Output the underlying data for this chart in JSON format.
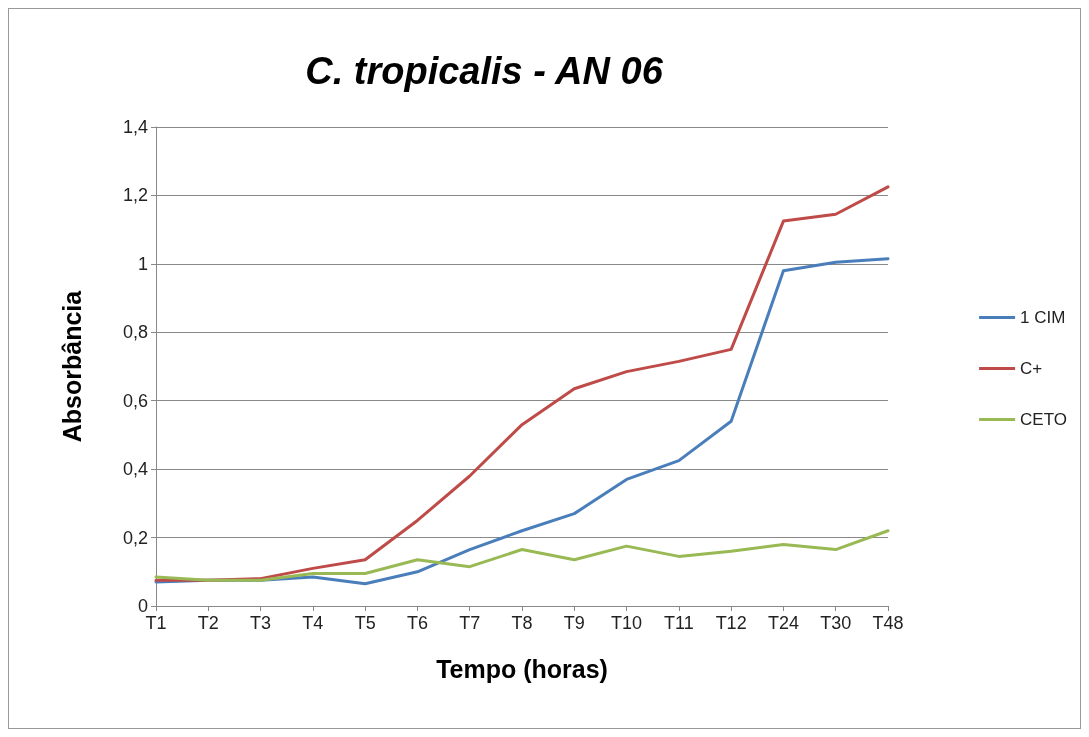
{
  "chart_data": {
    "type": "line",
    "title": "C. tropicalis - AN 06",
    "xlabel": "Tempo (horas)",
    "ylabel": "Absorbância",
    "categories": [
      "T1",
      "T2",
      "T3",
      "T4",
      "T5",
      "T6",
      "T7",
      "T8",
      "T9",
      "T10",
      "T11",
      "T12",
      "T24",
      "T30",
      "T48"
    ],
    "series": [
      {
        "name": "1 CIM",
        "color": "#4a7ebb",
        "values": [
          0.07,
          0.075,
          0.075,
          0.085,
          0.065,
          0.1,
          0.165,
          0.22,
          0.27,
          0.37,
          0.425,
          0.54,
          0.98,
          1.005,
          1.015
        ]
      },
      {
        "name": "C+",
        "color": "#be4b48",
        "values": [
          0.075,
          0.075,
          0.08,
          0.11,
          0.135,
          0.25,
          0.38,
          0.53,
          0.635,
          0.685,
          0.715,
          0.75,
          1.125,
          1.145,
          1.225
        ]
      },
      {
        "name": "CETO",
        "color": "#98b954",
        "values": [
          0.085,
          0.075,
          0.075,
          0.095,
          0.095,
          0.135,
          0.115,
          0.165,
          0.135,
          0.175,
          0.145,
          0.16,
          0.18,
          0.165,
          0.22
        ]
      }
    ],
    "ylim": [
      0,
      1.4
    ],
    "yticks": [
      0,
      {
        "value": 0.2,
        "label": "0,2"
      },
      {
        "value": 0.4,
        "label": "0,4"
      },
      {
        "value": 0.6,
        "label": "0,6"
      },
      {
        "value": 0.8,
        "label": "0,8"
      },
      1,
      {
        "value": 1.2,
        "label": "1,2"
      },
      {
        "value": 1.4,
        "label": "1,4"
      }
    ],
    "grid": "y",
    "legend": "right",
    "marker": "none",
    "line_style": "solid"
  }
}
